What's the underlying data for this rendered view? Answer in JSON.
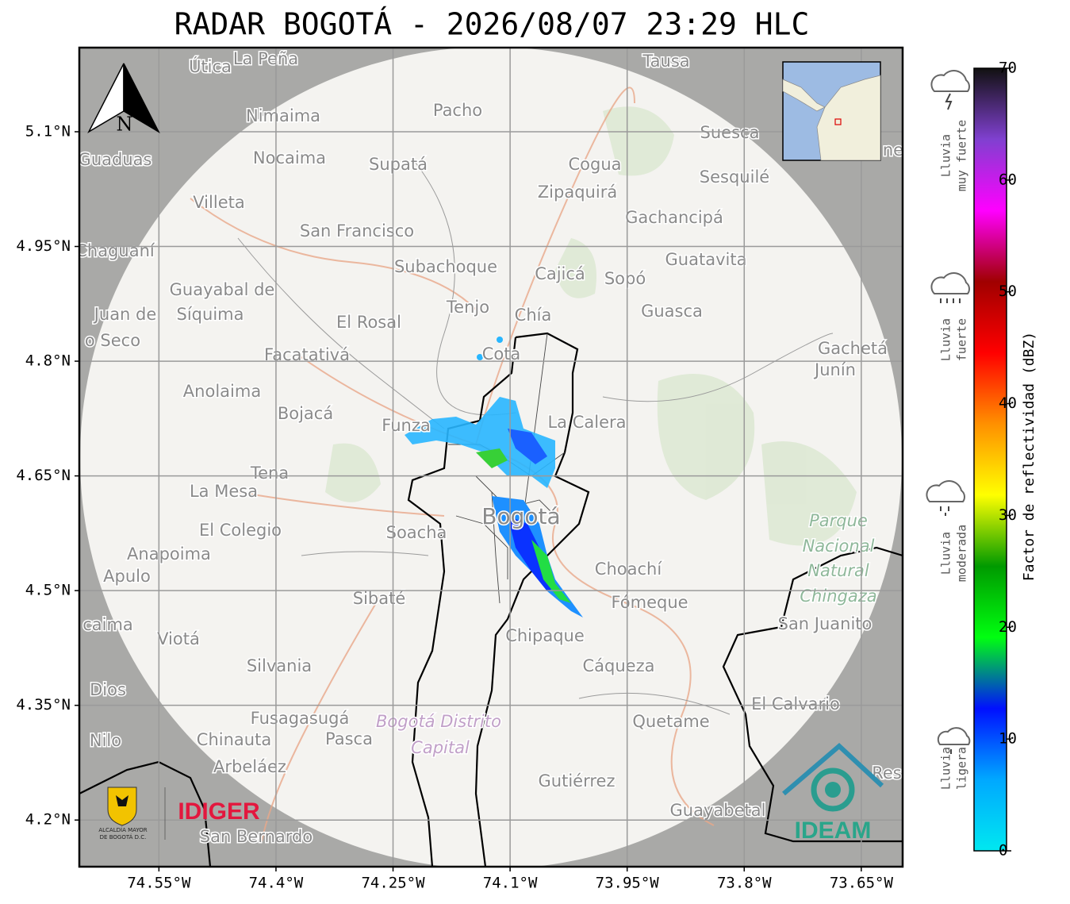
{
  "title": "RADAR BOGOTÁ - 2026/08/07 23:29 HLC",
  "map": {
    "xlim": [
      -74.652,
      -73.597
    ],
    "ylim": [
      4.139,
      5.21
    ],
    "xticks": [
      {
        "value": -74.55,
        "label": "74.55°W"
      },
      {
        "value": -74.4,
        "label": "74.4°W"
      },
      {
        "value": -74.25,
        "label": "74.25°W"
      },
      {
        "value": -74.1,
        "label": "74.1°W"
      },
      {
        "value": -73.95,
        "label": "73.95°W"
      },
      {
        "value": -73.8,
        "label": "73.8°W"
      },
      {
        "value": -73.65,
        "label": "73.65°W"
      }
    ],
    "yticks": [
      {
        "value": 4.2,
        "label": "4.2°N"
      },
      {
        "value": 4.35,
        "label": "4.35°N"
      },
      {
        "value": 4.5,
        "label": "4.5°N"
      },
      {
        "value": 4.65,
        "label": "4.65°N"
      },
      {
        "value": 4.8,
        "label": "4.8°N"
      },
      {
        "value": 4.95,
        "label": "4.95°N"
      },
      {
        "value": 5.1,
        "label": "5.1°N"
      }
    ],
    "grid": true,
    "north_label": "N",
    "places": [
      "Útica",
      "La Peña",
      "Tausa",
      "Pacho",
      "Nimaima",
      "Guaduas",
      "Nocaima",
      "Supatá",
      "Cogua",
      "Suesca",
      "Sesquilé",
      "Zipaquirá",
      "Villeta",
      "Gachancipá",
      "San Francisco",
      "Chaguaní",
      "Guatavita",
      "Subachoque",
      "Cajicá",
      "Sopó",
      "Guayabal de",
      "Síquima",
      "Tenjo",
      "Chía",
      "Guasca",
      "Juan de",
      "o Seco",
      "El Rosal",
      "Facatativá",
      "Cota",
      "Gachetá",
      "Junín",
      "Anolaima",
      "Bojacá",
      "La Calera",
      "Funza",
      "Tena",
      "La Mesa",
      "Bogotá",
      "El Colegio",
      "Soacha",
      "Anapoima",
      "Apulo",
      "Choachí",
      "Sibaté",
      "Fómeque",
      "San Juanito",
      "caima",
      "Viotá",
      "Chipaque",
      "Silvania",
      "Cáqueza",
      "Dios",
      "El Calvario",
      "Fusagasugá",
      "Quetame",
      "Nilo",
      "Chinauta",
      "Pasca",
      "Arbeláez",
      "Gutiérrez",
      "Guayabetal",
      "San Bernardo",
      "Res",
      "ne",
      "Parque",
      "Nacional",
      "Natural",
      "Chingaza",
      "Bogotá Distrito",
      "Capital"
    ]
  },
  "colorbar": {
    "label": "Factor de reflectividad (dBZ)",
    "lim": [
      0,
      70
    ],
    "ticks": [
      0,
      10,
      20,
      30,
      40,
      50,
      60,
      70
    ],
    "colors": [
      "#00e8f0",
      "#00a8ff",
      "#0010ff",
      "#00ff10",
      "#009a00",
      "#ffff00",
      "#ff9000",
      "#ff0000",
      "#a00000",
      "#ff00ff",
      "#8040d0",
      "#111111"
    ]
  },
  "rain_levels": [
    [
      "Lluvia",
      "muy fuerte"
    ],
    [
      "Lluvia",
      "fuerte"
    ],
    [
      "Lluvia",
      "moderada"
    ],
    [
      "Lluvia",
      "ligera"
    ]
  ],
  "logos": {
    "alcaldia": [
      "ALCALDÍA MAYOR",
      "DE BOGOTÁ D.C."
    ],
    "idiger": "IDIGER",
    "ideam": "IDEAM"
  }
}
